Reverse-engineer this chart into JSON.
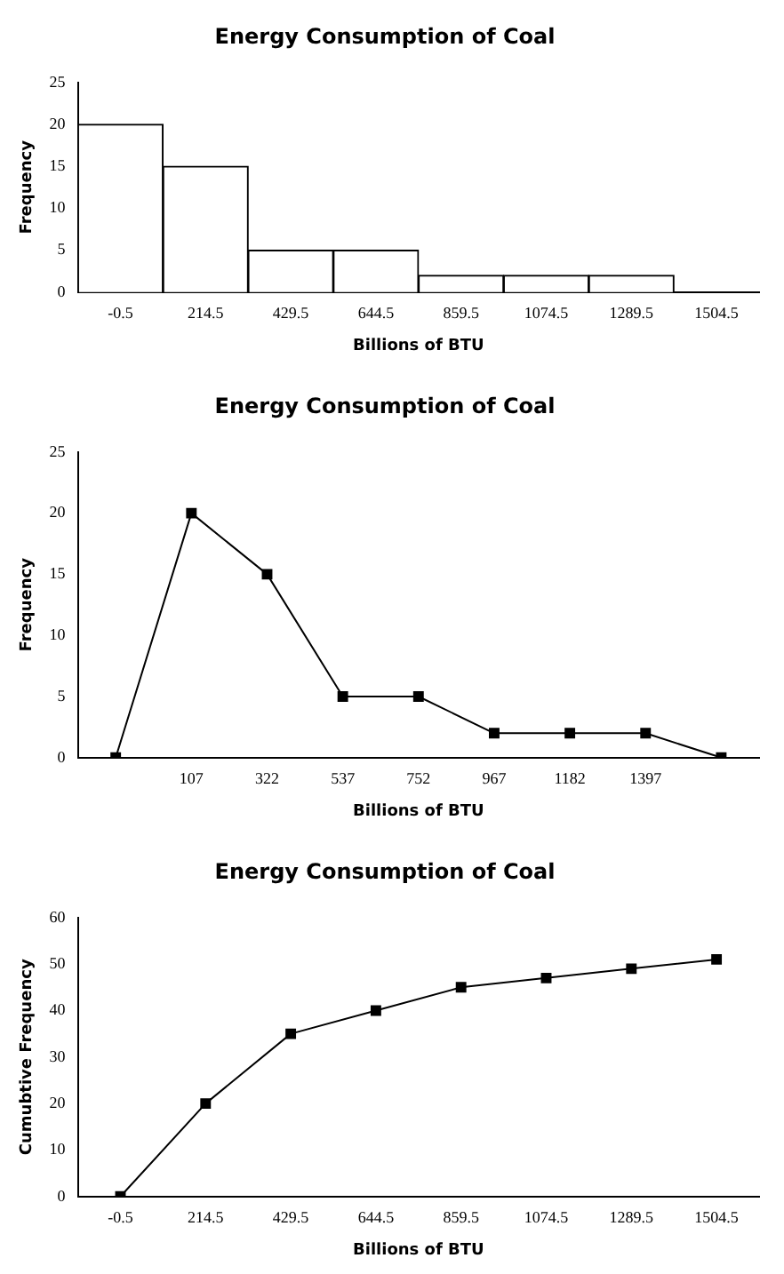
{
  "chart_data": [
    {
      "type": "bar",
      "title": "Energy Consumption of Coal",
      "xlabel": "Billions of BTU",
      "ylabel": "Frequency",
      "categories": [
        "-0.5",
        "214.5",
        "429.5",
        "644.5",
        "859.5",
        "1074.5",
        "1289.5",
        "1504.5"
      ],
      "values": [
        20,
        15,
        5,
        5,
        2,
        2,
        2,
        0
      ],
      "color": "#ffffff",
      "ylim": [
        0,
        25
      ],
      "yticks": [
        0,
        5,
        10,
        15,
        20,
        25
      ]
    },
    {
      "type": "line",
      "title": "Energy Consumption of Coal",
      "xlabel": "Billions of BTU",
      "ylabel": "Frequency",
      "categories": [
        null,
        "107",
        "322",
        "537",
        "752",
        "967",
        "1182",
        "1397",
        null
      ],
      "values": [
        0,
        20,
        15,
        5,
        5,
        2,
        2,
        2,
        0
      ],
      "color": "#000000",
      "marker": "square",
      "ylim": [
        0,
        25
      ],
      "yticks": [
        0,
        5,
        10,
        15,
        20,
        25
      ]
    },
    {
      "type": "line",
      "title": "Energy Consumption of Coal",
      "xlabel": "Billions of BTU",
      "ylabel": "Cumubtive Frequency",
      "categories": [
        "-0.5",
        "214.5",
        "429.5",
        "644.5",
        "859.5",
        "1074.5",
        "1289.5",
        "1504.5"
      ],
      "values": [
        0,
        20,
        35,
        40,
        45,
        47,
        49,
        51
      ],
      "color": "#000000",
      "marker": "square",
      "ylim": [
        0,
        60
      ],
      "yticks": [
        0,
        10,
        20,
        30,
        40,
        50,
        60
      ]
    }
  ]
}
